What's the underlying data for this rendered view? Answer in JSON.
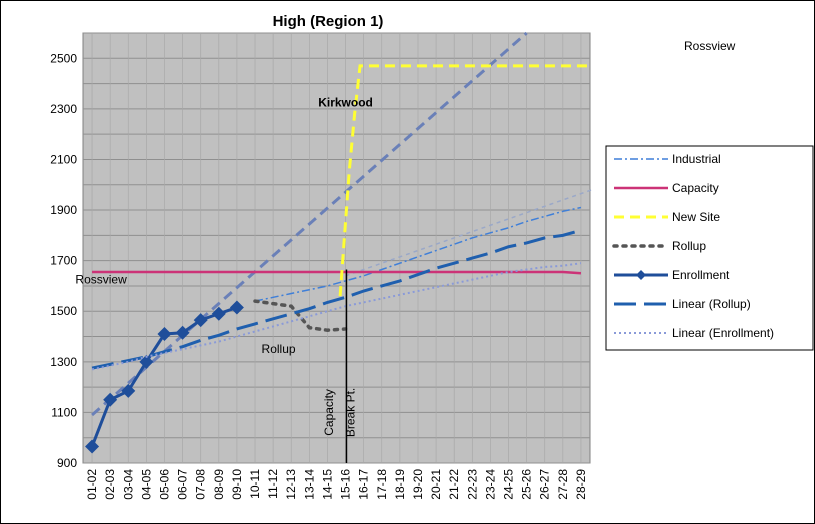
{
  "chart_data": {
    "type": "line",
    "title": "High (Region 1)",
    "top_right_label": "Rossview",
    "categories": [
      "01-02",
      "02-03",
      "03-04",
      "04-05",
      "05-06",
      "06-07",
      "07-08",
      "08-09",
      "09-10",
      "10-11",
      "11-12",
      "12-13",
      "13-14",
      "14-15",
      "15-16",
      "16-17",
      "17-18",
      "18-19",
      "19-20",
      "20-21",
      "21-22",
      "22-23",
      "23-24",
      "24-25",
      "25-26",
      "26-27",
      "27-28",
      "28-29"
    ],
    "ylim": [
      900,
      2600
    ],
    "yticks": [
      900,
      1100,
      1300,
      1500,
      1700,
      1900,
      2100,
      2300,
      2500
    ],
    "plot_background": "#c0c0c0",
    "grid": true,
    "legend_position": "right",
    "series": [
      {
        "name": "Industrial",
        "color": "#3f7fd8",
        "style": "dash-dot",
        "values": [
          null,
          null,
          null,
          null,
          null,
          null,
          null,
          null,
          null,
          1540,
          1555,
          1570,
          1585,
          1600,
          1620,
          1640,
          1665,
          1690,
          1715,
          1740,
          1765,
          1790,
          1810,
          1830,
          1855,
          1875,
          1895,
          1910
        ]
      },
      {
        "name": "Capacity",
        "color": "#cc3377",
        "style": "solid",
        "values": [
          1655,
          1655,
          1655,
          1655,
          1655,
          1655,
          1655,
          1655,
          1655,
          1655,
          1655,
          1655,
          1655,
          1655,
          1655,
          1655,
          1655,
          1655,
          1655,
          1655,
          1655,
          1655,
          1655,
          1655,
          1655,
          1655,
          1655,
          1650
        ]
      },
      {
        "name": "New Site",
        "color": "#ffff33",
        "style": "dash",
        "points": [
          [
            13.7,
            1560
          ],
          [
            14.2,
            2050
          ],
          [
            14.5,
            2280
          ],
          [
            14.8,
            2470
          ],
          [
            15.5,
            2470
          ],
          [
            27.6,
            2470
          ]
        ]
      },
      {
        "name": "Rollup",
        "color": "#555555",
        "style": "round-dot",
        "values": [
          null,
          null,
          null,
          null,
          null,
          null,
          null,
          null,
          null,
          1540,
          1530,
          1520,
          1435,
          1425,
          1430,
          null,
          null,
          null,
          null,
          null,
          null,
          null,
          null,
          null,
          null,
          null,
          null,
          null
        ]
      },
      {
        "name": "Enrollment",
        "color": "#1f4e9a",
        "style": "solid-marker",
        "values": [
          965,
          1150,
          1185,
          1300,
          1410,
          1415,
          1465,
          1490,
          1515,
          null,
          null,
          null,
          null,
          null,
          null,
          null,
          null,
          null,
          null,
          null,
          null,
          null,
          null,
          null,
          null,
          null,
          null,
          null
        ]
      },
      {
        "name": "Linear (Rollup)",
        "color": "#1f5fae",
        "style": "long-dash",
        "values": [
          1275,
          1290,
          1305,
          1320,
          1340,
          1360,
          1385,
          1405,
          1430,
          1450,
          1470,
          1490,
          1510,
          1535,
          1555,
          1580,
          1600,
          1620,
          1645,
          1670,
          1690,
          1710,
          1730,
          1755,
          1770,
          1790,
          1800,
          1820
        ]
      },
      {
        "name": "Linear (Enrollment)",
        "color": "#8a9ad8",
        "style": "fine-dot",
        "values": [
          1270,
          1285,
          1300,
          1320,
          1335,
          1350,
          1365,
          1380,
          1400,
          1420,
          1440,
          1460,
          1480,
          1500,
          1520,
          1535,
          1550,
          1565,
          1580,
          1595,
          1610,
          1625,
          1640,
          1655,
          1665,
          1675,
          1680,
          1690
        ]
      }
    ],
    "extra_lines": [
      {
        "color": "#6a80b8",
        "style": "dash",
        "points": [
          [
            0,
            1090
          ],
          [
            24,
            2600
          ]
        ]
      },
      {
        "color": "#9aa8c8",
        "style": "fine-dash",
        "points": [
          [
            14,
            1640
          ],
          [
            27.6,
            1980
          ]
        ]
      }
    ],
    "vertical_line": {
      "x": 14.05,
      "y_from": 900,
      "y_to": 1665,
      "color": "#000000"
    },
    "annotations": [
      {
        "text": "Kirkwood",
        "x": 14,
        "y": 2310,
        "color": "#000000"
      },
      {
        "text": "Rossview",
        "x": 0.5,
        "y": 1610,
        "color": "#cc3377"
      },
      {
        "text": "Rollup",
        "x": 10.3,
        "y": 1335,
        "color": "#eeeeee"
      },
      {
        "text": "Capacity",
        "x": 13.3,
        "y": 1100,
        "color": "#000000",
        "rotate": -90
      },
      {
        "text": "Break Pt.",
        "x": 14.5,
        "y": 1100,
        "color": "#000000",
        "rotate": -90
      }
    ]
  }
}
